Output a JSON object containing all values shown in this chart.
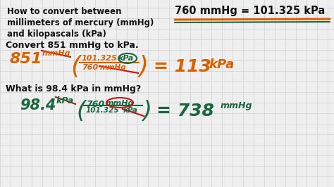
{
  "background_color": "#efefef",
  "grid_color": "#d0d0d0",
  "title_line1": "How to convert between",
  "title_line2": "millimeters of mercury (mmHg)",
  "title_line3": "and kilopascals (kPa)",
  "title_color": "#111111",
  "formula_text": "760 mmHg = 101.325 kPa",
  "formula_color": "#111111",
  "underline_orange": "#d96000",
  "underline_green": "#1a6640",
  "section1_text": "Convert 851 mmHg to kPa.",
  "section2_text": "What is 98.4 kPa in mmHg?",
  "orange": "#d96000",
  "green": "#1a6640",
  "red": "#cc1111",
  "xlim": [
    0,
    474
  ],
  "ylim": [
    0,
    266
  ]
}
